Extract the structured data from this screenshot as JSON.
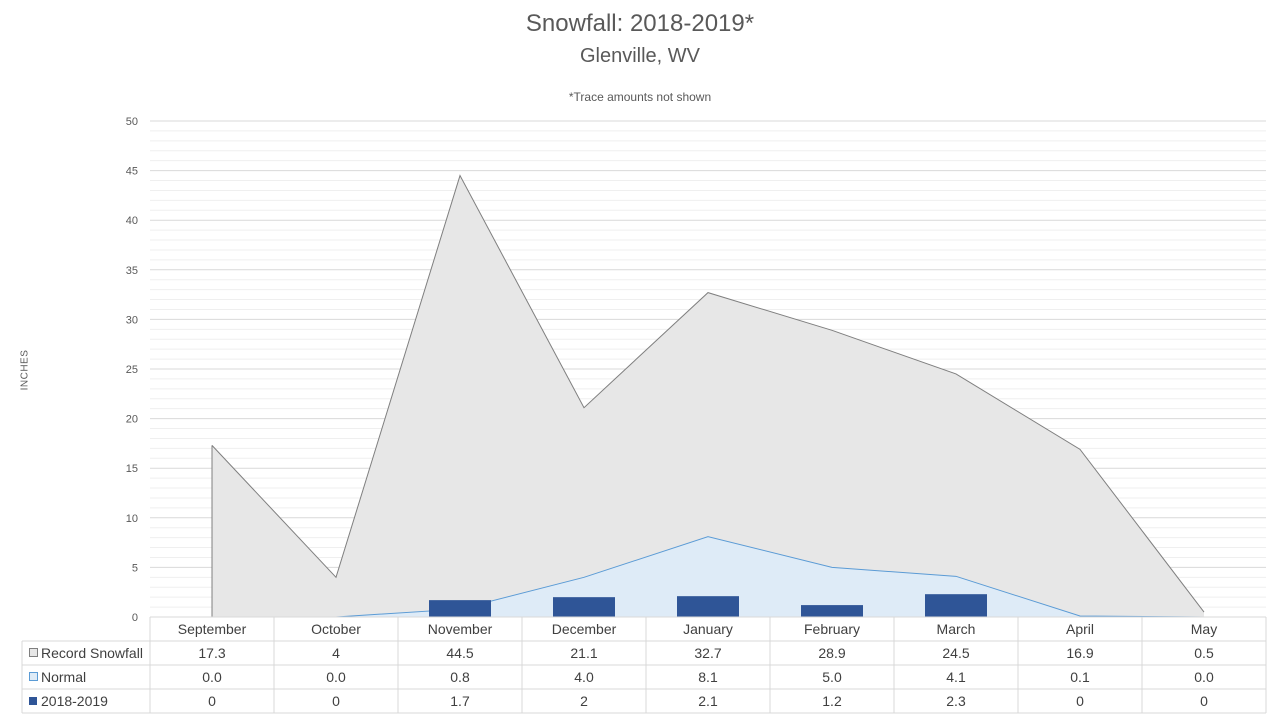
{
  "chart_data": {
    "type": "area",
    "title": "Snowfall: 2018-2019*",
    "subtitle": "Glenville, WV",
    "note": "*Trace amounts not shown",
    "ylabel": "INCHES",
    "ylim": [
      0,
      50
    ],
    "yticks": [
      "0",
      "5",
      "10",
      "15",
      "20",
      "25",
      "30",
      "35",
      "40",
      "45",
      "50"
    ],
    "grid": true,
    "legend": "data table",
    "categories": [
      "September",
      "October",
      "November",
      "December",
      "January",
      "February",
      "March",
      "April",
      "May"
    ],
    "series": [
      {
        "name": "Record Snowfall",
        "kind": "area",
        "color": "#e7e7e7",
        "line_color": "#7f7f7f",
        "values": [
          17.3,
          4,
          44.5,
          21.1,
          32.7,
          28.9,
          24.5,
          16.9,
          0.5
        ],
        "labels": [
          "17.3",
          "4",
          "44.5",
          "21.1",
          "32.7",
          "28.9",
          "24.5",
          "16.9",
          "0.5"
        ]
      },
      {
        "name": "Normal",
        "kind": "area",
        "color": "#deebf7",
        "line_color": "#5b9bd5",
        "values": [
          0.0,
          0.0,
          0.8,
          4.0,
          8.1,
          5.0,
          4.1,
          0.1,
          0.0
        ],
        "labels": [
          "0.0",
          "0.0",
          "0.8",
          "4.0",
          "8.1",
          "5.0",
          "4.1",
          "0.1",
          "0.0"
        ]
      },
      {
        "name": "2018-2019",
        "kind": "bar",
        "color": "#2f5597",
        "values": [
          0,
          0,
          1.7,
          2,
          2.1,
          1.2,
          2.3,
          0,
          0
        ],
        "labels": [
          "0",
          "0",
          "1.7",
          "2",
          "2.1",
          "1.2",
          "2.3",
          "0",
          "0"
        ]
      }
    ]
  }
}
